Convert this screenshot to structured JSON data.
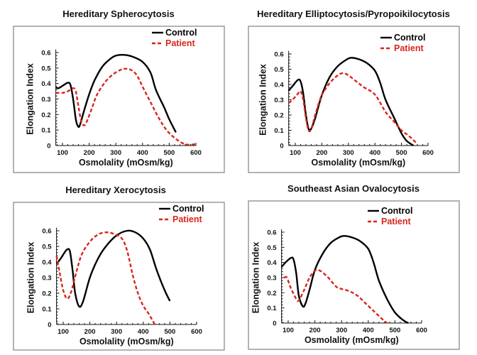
{
  "chart_data": [
    {
      "type": "line",
      "title": "Hereditary Spherocytosis",
      "xlabel": "Osmolality (mOsm/kg)",
      "ylabel": "Elongation Index",
      "xlim": [
        75,
        600
      ],
      "ylim": [
        0,
        0.6
      ],
      "xticks": [
        "100",
        "200",
        "300",
        "400",
        "500",
        "600"
      ],
      "yticks": [
        "0",
        "0.1",
        "0.2",
        "0.3",
        "0.4",
        "0.5",
        "0.6"
      ],
      "grid": false,
      "legend": "top-right",
      "series": [
        {
          "name": "Control",
          "color": "#000000",
          "dashed": false,
          "x": [
            75,
            85,
            100,
            120,
            130,
            140,
            150,
            158,
            165,
            180,
            200,
            220,
            250,
            280,
            300,
            330,
            360,
            400,
            430,
            450,
            480,
            500,
            525
          ],
          "y": [
            0.375,
            0.37,
            0.385,
            0.405,
            0.39,
            0.3,
            0.17,
            0.125,
            0.13,
            0.22,
            0.33,
            0.42,
            0.51,
            0.56,
            0.58,
            0.585,
            0.575,
            0.54,
            0.47,
            0.36,
            0.25,
            0.17,
            0.085
          ]
        },
        {
          "name": "Patient",
          "color": "#d9261c",
          "dashed": true,
          "x": [
            75,
            100,
            120,
            140,
            150,
            160,
            170,
            180,
            190,
            210,
            230,
            260,
            290,
            320,
            340,
            360,
            380,
            400,
            430,
            460,
            490,
            520,
            550,
            575,
            600
          ],
          "y": [
            0.34,
            0.34,
            0.35,
            0.37,
            0.35,
            0.25,
            0.16,
            0.13,
            0.15,
            0.24,
            0.33,
            0.41,
            0.46,
            0.49,
            0.495,
            0.485,
            0.45,
            0.38,
            0.28,
            0.18,
            0.1,
            0.05,
            0.015,
            0.005,
            0.01
          ]
        }
      ]
    },
    {
      "type": "line",
      "title": "Hereditary Elliptocytosis/Pyropoikilocytosis",
      "xlabel": "Osmolality (mOsm/kg)",
      "ylabel": "Elongation Index",
      "xlim": [
        75,
        600
      ],
      "ylim": [
        0,
        0.6
      ],
      "xticks": [
        "100",
        "200",
        "300",
        "400",
        "500",
        "600"
      ],
      "yticks": [
        "0",
        "0.1",
        "0.2",
        "0.3",
        "0.4",
        "0.5",
        "0.6"
      ],
      "grid": false,
      "legend": "top-right",
      "series": [
        {
          "name": "Control",
          "color": "#000000",
          "dashed": false,
          "x": [
            75,
            90,
            110,
            120,
            130,
            140,
            150,
            160,
            175,
            200,
            230,
            260,
            290,
            310,
            340,
            370,
            400,
            420,
            440,
            470,
            500,
            520,
            545
          ],
          "y": [
            0.36,
            0.39,
            0.43,
            0.42,
            0.34,
            0.2,
            0.11,
            0.11,
            0.18,
            0.33,
            0.45,
            0.52,
            0.56,
            0.575,
            0.565,
            0.54,
            0.49,
            0.41,
            0.3,
            0.19,
            0.08,
            0.03,
            0.0
          ]
        },
        {
          "name": "Patient",
          "color": "#d9261c",
          "dashed": true,
          "x": [
            75,
            90,
            110,
            120,
            130,
            140,
            150,
            160,
            180,
            200,
            230,
            260,
            280,
            300,
            330,
            360,
            390,
            410,
            440,
            470,
            500,
            530,
            560
          ],
          "y": [
            0.28,
            0.3,
            0.34,
            0.355,
            0.3,
            0.18,
            0.1,
            0.11,
            0.23,
            0.33,
            0.41,
            0.46,
            0.475,
            0.46,
            0.42,
            0.38,
            0.35,
            0.31,
            0.22,
            0.16,
            0.1,
            0.06,
            0.01
          ]
        }
      ]
    },
    {
      "type": "line",
      "title": "Hereditary Xerocytosis",
      "xlabel": "Osmolality (mOsm/kg)",
      "ylabel": "Elongation Index",
      "xlim": [
        75,
        600
      ],
      "ylim": [
        0,
        0.6
      ],
      "xticks": [
        "100",
        "200",
        "300",
        "400",
        "500",
        "600"
      ],
      "yticks": [
        "0",
        "0.1",
        "0.2",
        "0.3",
        "0.4",
        "0.5",
        "0.6"
      ],
      "grid": false,
      "legend": "top-right",
      "series": [
        {
          "name": "Control",
          "color": "#000000",
          "dashed": false,
          "x": [
            75,
            90,
            105,
            115,
            125,
            135,
            145,
            160,
            175,
            200,
            230,
            260,
            300,
            340,
            370,
            400,
            425,
            450,
            480,
            500
          ],
          "y": [
            0.39,
            0.42,
            0.46,
            0.48,
            0.47,
            0.35,
            0.2,
            0.115,
            0.15,
            0.3,
            0.42,
            0.5,
            0.57,
            0.6,
            0.59,
            0.55,
            0.48,
            0.35,
            0.22,
            0.15
          ]
        },
        {
          "name": "Patient",
          "color": "#d9261c",
          "dashed": true,
          "x": [
            75,
            85,
            100,
            115,
            130,
            150,
            170,
            200,
            230,
            260,
            290,
            320,
            340,
            360,
            380,
            400,
            420,
            440,
            445
          ],
          "y": [
            0.44,
            0.35,
            0.22,
            0.165,
            0.21,
            0.34,
            0.45,
            0.53,
            0.575,
            0.59,
            0.58,
            0.55,
            0.47,
            0.32,
            0.2,
            0.12,
            0.07,
            0.01,
            0.0
          ]
        }
      ]
    },
    {
      "type": "line",
      "title": "Southeast Asian Ovalocytosis",
      "xlabel": "Osmolality (mOsm/kg)",
      "ylabel": "Elongation Index",
      "xlim": [
        75,
        600
      ],
      "ylim": [
        0,
        0.6
      ],
      "xticks": [
        "100",
        "200",
        "300",
        "400",
        "500",
        "600"
      ],
      "yticks": [
        "0",
        "0.1",
        "0.2",
        "0.3",
        "0.4",
        "0.5",
        "0.6"
      ],
      "grid": false,
      "legend": "top-right",
      "series": [
        {
          "name": "Control",
          "color": "#000000",
          "dashed": false,
          "x": [
            75,
            90,
            110,
            120,
            130,
            140,
            155,
            165,
            180,
            200,
            230,
            260,
            290,
            310,
            340,
            370,
            400,
            420,
            440,
            470,
            500,
            530,
            550
          ],
          "y": [
            0.37,
            0.4,
            0.43,
            0.42,
            0.33,
            0.18,
            0.11,
            0.13,
            0.22,
            0.35,
            0.46,
            0.53,
            0.565,
            0.575,
            0.565,
            0.54,
            0.49,
            0.4,
            0.28,
            0.16,
            0.07,
            0.02,
            0.0
          ]
        },
        {
          "name": "Patient",
          "color": "#d9261c",
          "dashed": true,
          "x": [
            85,
            95,
            110,
            130,
            140,
            160,
            180,
            200,
            220,
            250,
            280,
            300,
            330,
            360,
            390,
            420,
            450,
            470
          ],
          "y": [
            0.3,
            0.3,
            0.23,
            0.16,
            0.15,
            0.22,
            0.3,
            0.345,
            0.345,
            0.3,
            0.24,
            0.225,
            0.21,
            0.18,
            0.13,
            0.08,
            0.03,
            0.0
          ]
        }
      ]
    }
  ]
}
